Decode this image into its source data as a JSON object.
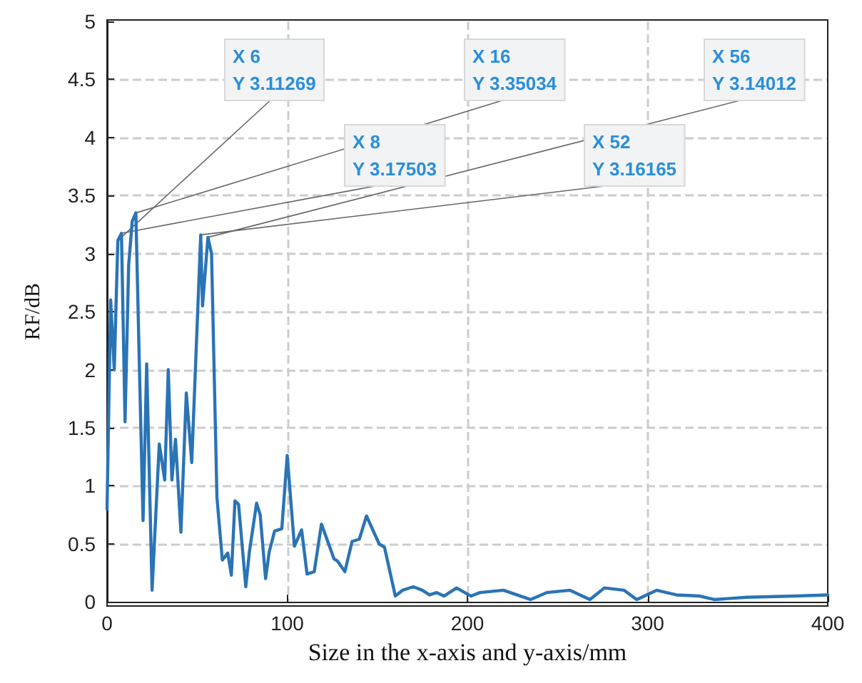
{
  "chart_data": {
    "type": "line",
    "xlabel": "Size in the x-axis and y-axis/mm",
    "ylabel": "RF/dB",
    "x": [
      0,
      2,
      4,
      6,
      8,
      10,
      12,
      14,
      16,
      18,
      20,
      22,
      25,
      29,
      32,
      34,
      36,
      38,
      41,
      44,
      47,
      52,
      53,
      56,
      58,
      61,
      64,
      67,
      69,
      71,
      73,
      77,
      79,
      83,
      85,
      88,
      90,
      93,
      97,
      100,
      104,
      108,
      111,
      115,
      119,
      126,
      128,
      132,
      136,
      140,
      144,
      151,
      154,
      160,
      164,
      170,
      175,
      179,
      183,
      187,
      194,
      202,
      207,
      220,
      235,
      244,
      257,
      268,
      276,
      287,
      294,
      305,
      316,
      329,
      337,
      355,
      382,
      400
    ],
    "series": [
      {
        "color": "#2a74b5",
        "values": [
          0.8,
          2.6,
          2.0,
          3.11269,
          3.17503,
          1.55,
          2.9,
          3.28,
          3.35034,
          2.0,
          0.7,
          2.05,
          0.1,
          1.36,
          1.05,
          2.0,
          1.05,
          1.4,
          0.6,
          1.8,
          1.2,
          3.16165,
          2.55,
          3.14012,
          3.0,
          0.9,
          0.36,
          0.42,
          0.23,
          0.87,
          0.84,
          0.13,
          0.43,
          0.85,
          0.75,
          0.2,
          0.43,
          0.61,
          0.63,
          1.26,
          0.48,
          0.62,
          0.24,
          0.26,
          0.67,
          0.37,
          0.35,
          0.26,
          0.52,
          0.54,
          0.74,
          0.5,
          0.47,
          0.05,
          0.1,
          0.13,
          0.1,
          0.06,
          0.08,
          0.05,
          0.12,
          0.05,
          0.08,
          0.1,
          0.02,
          0.08,
          0.1,
          0.02,
          0.12,
          0.1,
          0.02,
          0.1,
          0.06,
          0.05,
          0.02,
          0.04,
          0.05,
          0.06
        ]
      }
    ],
    "xlim": [
      0,
      400
    ],
    "xticks": [
      0,
      100,
      200,
      300,
      400
    ],
    "ylim": [
      0,
      5
    ],
    "yticks": [
      0,
      0.5,
      1,
      1.5,
      2,
      2.5,
      3,
      3.5,
      4,
      4.5,
      5
    ],
    "grid": true,
    "line_style": "solid",
    "marker": "none",
    "annotations": [
      {
        "text": "X 6\nY 3.11269",
        "x": 6,
        "y": 3.11269
      },
      {
        "text": "X 8\nY 3.17503",
        "x": 8,
        "y": 3.17503
      },
      {
        "text": "X 16\nY 3.35034",
        "x": 16,
        "y": 3.35034
      },
      {
        "text": "X 52\nY 3.16165",
        "x": 52,
        "y": 3.16165
      },
      {
        "text": "X 56\nY 3.14012",
        "x": 56,
        "y": 3.14012
      }
    ]
  }
}
